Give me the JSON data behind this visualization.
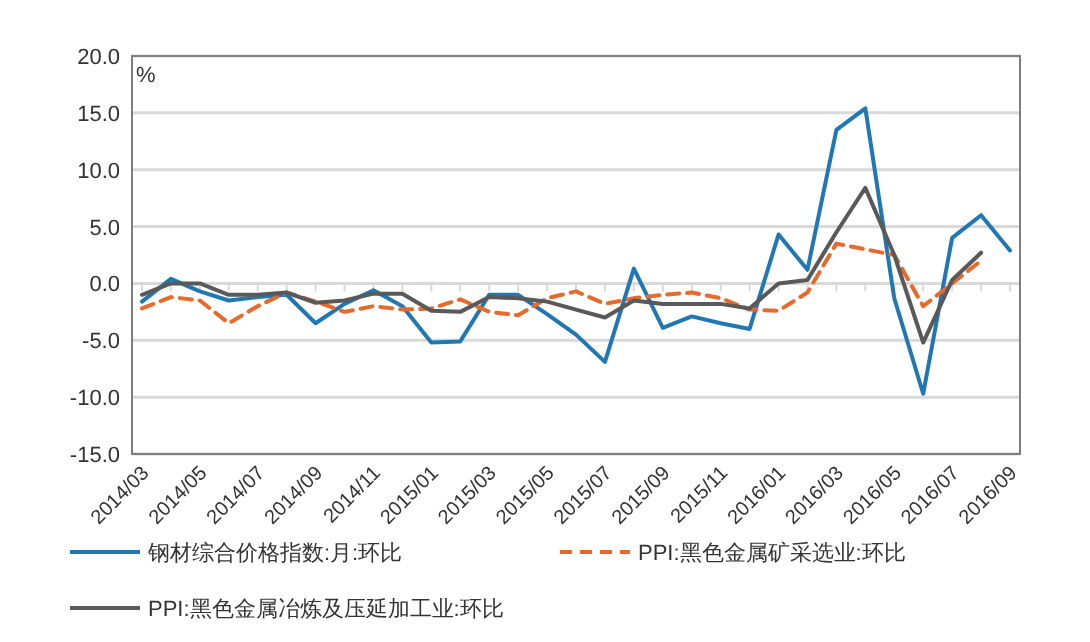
{
  "chart_data": {
    "type": "line",
    "ylabel": "%",
    "categories": [
      "2014/03",
      null,
      "2014/05",
      null,
      "2014/07",
      null,
      "2014/09",
      null,
      "2014/11",
      null,
      "2015/01",
      null,
      "2015/03",
      null,
      "2015/05",
      null,
      "2015/07",
      null,
      "2015/09",
      null,
      "2015/11",
      null,
      "2016/01",
      null,
      "2016/03",
      null,
      "2016/05",
      null,
      "2016/07",
      null,
      "2016/09"
    ],
    "series": [
      {
        "name": "钢材综合价格指数:月:环比",
        "color": "#1f77b4",
        "line_style": "solid",
        "values": [
          -1.6,
          0.4,
          -0.7,
          -1.5,
          -1.2,
          -1.0,
          -3.5,
          -1.8,
          -0.6,
          -2.0,
          -5.2,
          -5.1,
          -1.0,
          -1.0,
          -2.7,
          -4.5,
          -6.9,
          1.3,
          -3.9,
          -2.9,
          -3.5,
          -4.0,
          4.3,
          1.2,
          13.5,
          15.4,
          -1.3,
          -9.7,
          4.0,
          6.0,
          2.9
        ]
      },
      {
        "name": "PPI:黑色金属矿采选业:环比",
        "color": "#e8692a",
        "line_style": "dashed",
        "values": [
          -2.2,
          -1.2,
          -1.5,
          -3.5,
          -2.0,
          -0.8,
          -1.6,
          -2.5,
          -2.0,
          -2.3,
          -2.2,
          -1.4,
          -2.5,
          -2.8,
          -1.3,
          -0.7,
          -1.8,
          -1.3,
          -1.0,
          -0.8,
          -1.3,
          -2.3,
          -2.4,
          -0.8,
          3.5,
          3.0,
          2.5,
          -2.0,
          0.0,
          2.0,
          null
        ]
      },
      {
        "name": "PPI:黑色金属冶炼及压延加工业:环比",
        "color": "#595959",
        "line_style": "solid",
        "values": [
          -1.0,
          0.0,
          0.0,
          -1.0,
          -1.0,
          -0.8,
          -1.7,
          -1.5,
          -0.9,
          -0.9,
          -2.4,
          -2.5,
          -1.2,
          -1.3,
          -1.6,
          -2.3,
          -3.0,
          -1.5,
          -1.8,
          -1.8,
          -1.8,
          -2.2,
          0.0,
          0.3,
          4.5,
          8.4,
          2.5,
          -5.2,
          0.3,
          2.7,
          null
        ]
      }
    ],
    "ylim": [
      -15,
      20
    ],
    "yticks": [
      {
        "value": -15,
        "label": "-15.0"
      },
      {
        "value": -10,
        "label": "-10.0"
      },
      {
        "value": -5,
        "label": "-5.0"
      },
      {
        "value": 0,
        "label": "0.0"
      },
      {
        "value": 5,
        "label": "5.0"
      },
      {
        "value": 10,
        "label": "10.0"
      },
      {
        "value": 15,
        "label": "15.0"
      },
      {
        "value": 20,
        "label": "20.0"
      }
    ],
    "grid": "y",
    "legend": "bottom"
  }
}
